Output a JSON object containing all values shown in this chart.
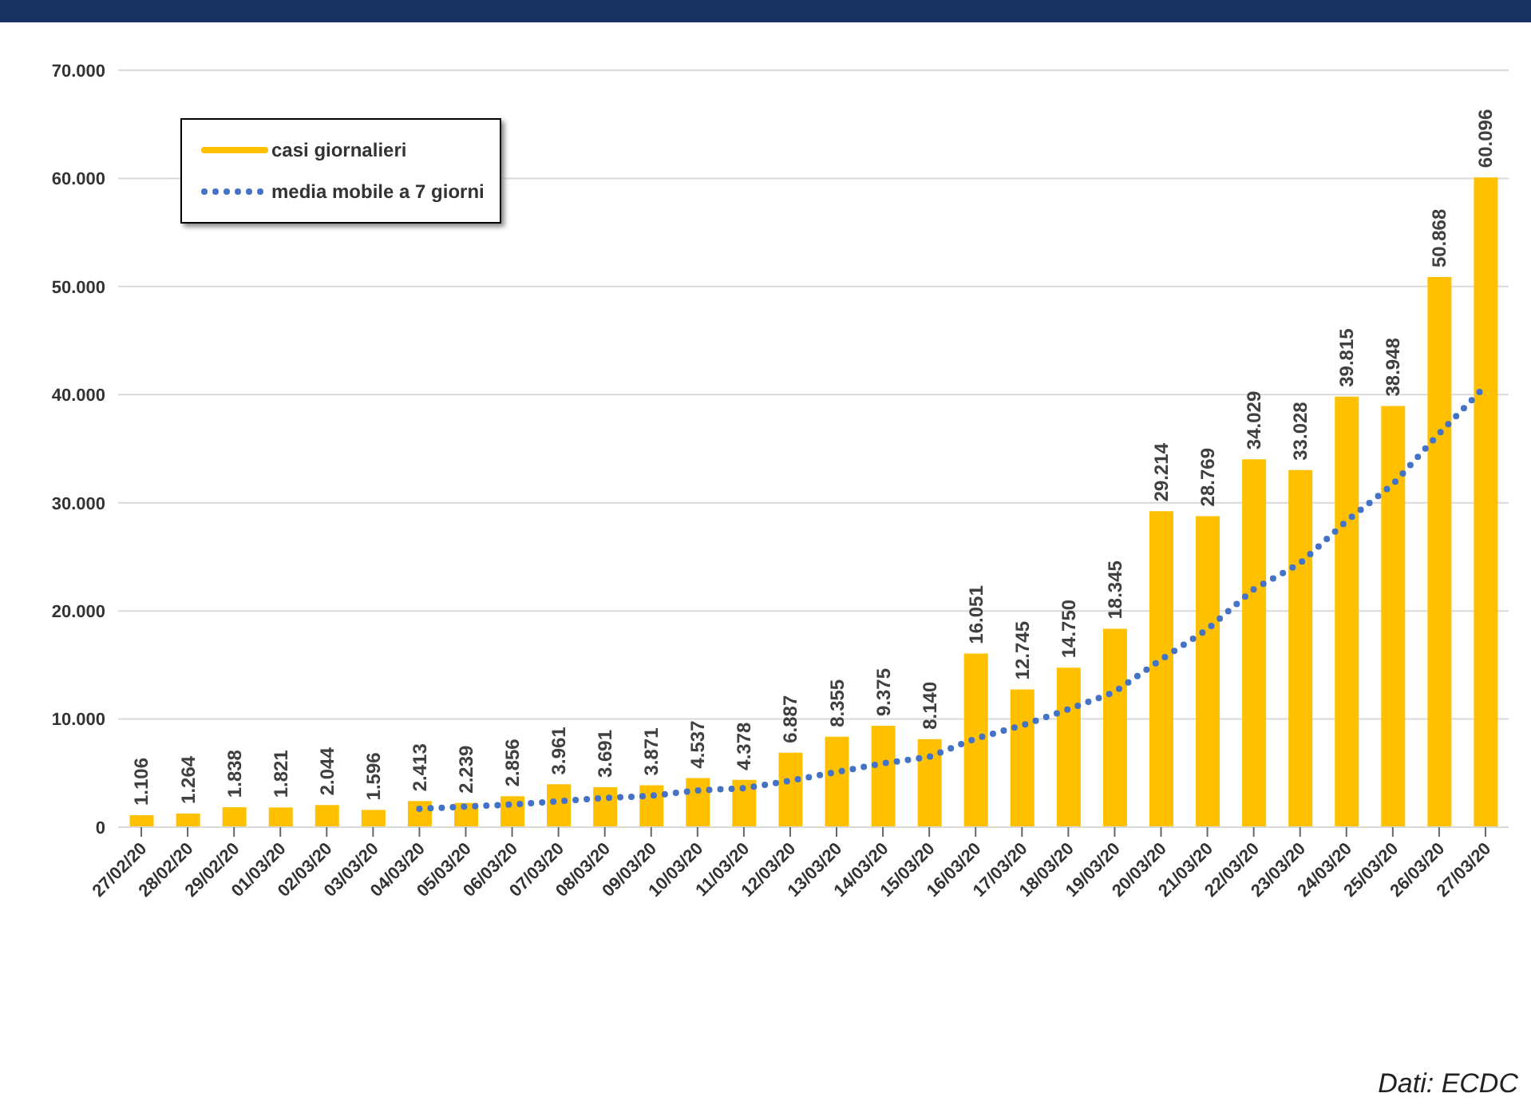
{
  "chart_data": {
    "type": "bar",
    "categories": [
      "27/02/20",
      "28/02/20",
      "29/02/20",
      "01/03/20",
      "02/03/20",
      "03/03/20",
      "04/03/20",
      "05/03/20",
      "06/03/20",
      "07/03/20",
      "08/03/20",
      "09/03/20",
      "10/03/20",
      "11/03/20",
      "12/03/20",
      "13/03/20",
      "14/03/20",
      "15/03/20",
      "16/03/20",
      "17/03/20",
      "18/03/20",
      "19/03/20",
      "20/03/20",
      "21/03/20",
      "22/03/20",
      "23/03/20",
      "24/03/20",
      "25/03/20",
      "26/03/20",
      "27/03/20"
    ],
    "series": [
      {
        "name": "casi giornalieri",
        "color": "#ffc000",
        "values": [
          1106,
          1264,
          1838,
          1821,
          2044,
          1596,
          2413,
          2239,
          2856,
          3961,
          3691,
          3871,
          4537,
          4378,
          6887,
          8355,
          9375,
          8140,
          16051,
          12745,
          14750,
          18345,
          29214,
          28769,
          34029,
          33028,
          39815,
          38948,
          50868,
          60096
        ],
        "value_labels": [
          "1.106",
          "1.264",
          "1.838",
          "1.821",
          "2.044",
          "1.596",
          "2.413",
          "2.239",
          "2.856",
          "3.961",
          "3.691",
          "3.871",
          "4.537",
          "4.378",
          "6.887",
          "8.355",
          "9.375",
          "8.140",
          "16.051",
          "12.745",
          "14.750",
          "18.345",
          "29.214",
          "28.769",
          "34.029",
          "33.028",
          "39.815",
          "38.948",
          "50.868",
          "60.096"
        ]
      },
      {
        "name": "media mobile a 7 giorni",
        "type": "line",
        "color": "#4472c4",
        "line_style": "dotted",
        "marker": "none",
        "values": [
          null,
          null,
          null,
          null,
          null,
          null,
          1700,
          1900,
          2100,
          2400,
          2700,
          2900,
          3400,
          3600,
          4300,
          5100,
          5900,
          6500,
          8200,
          9400,
          10900,
          12500,
          15500,
          18300,
          22000,
          24400,
          28300,
          31700,
          36400,
          40800
        ]
      }
    ],
    "ylim": [
      0,
      70000
    ],
    "yticks": [
      {
        "value": 0,
        "label": "0"
      },
      {
        "value": 10000,
        "label": "10.000"
      },
      {
        "value": 20000,
        "label": "20.000"
      },
      {
        "value": 30000,
        "label": "30.000"
      },
      {
        "value": 40000,
        "label": "40.000"
      },
      {
        "value": 50000,
        "label": "50.000"
      },
      {
        "value": 60000,
        "label": "60.000"
      },
      {
        "value": 70000,
        "label": "70.000"
      }
    ],
    "grid": "y",
    "legend": "top left",
    "annotations": [
      "Dati: ECDC"
    ]
  }
}
